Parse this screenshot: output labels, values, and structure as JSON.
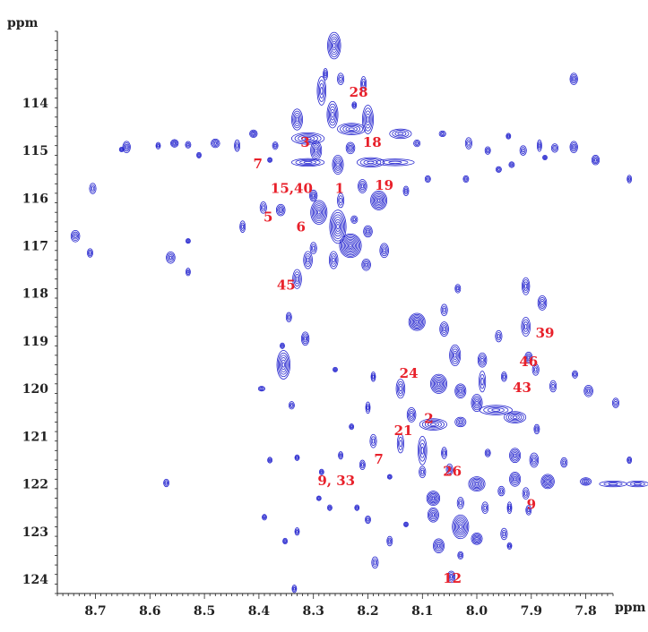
{
  "chart_data": {
    "type": "scatter",
    "subtype": "2D NMR contour spectrum",
    "x_unit": "ppm",
    "y_unit": "ppm",
    "x_axis_reversed": true,
    "xlim": [
      8.77,
      7.75
    ],
    "ylim": [
      112.5,
      124.3
    ],
    "x_ticks": [
      "8.7",
      "8.6",
      "8.5",
      "8.4",
      "8.3",
      "8.2",
      "8.1",
      "8.0",
      "7.9",
      "7.8"
    ],
    "y_ticks": [
      "114",
      "115",
      "116",
      "117",
      "118",
      "119",
      "120",
      "121",
      "122",
      "123",
      "124"
    ],
    "contour_color": "#1a1acc",
    "label_color": "#e8202a",
    "grid": false,
    "labels": [
      {
        "text": "28",
        "x": 8.217,
        "y": 113.8
      },
      {
        "text": "3",
        "x": 8.315,
        "y": 114.85
      },
      {
        "text": "18",
        "x": 8.192,
        "y": 114.85
      },
      {
        "text": "7",
        "x": 8.402,
        "y": 115.3
      },
      {
        "text": "15,40",
        "x": 8.34,
        "y": 115.82
      },
      {
        "text": "1",
        "x": 8.252,
        "y": 115.82
      },
      {
        "text": "19",
        "x": 8.17,
        "y": 115.75
      },
      {
        "text": "5",
        "x": 8.383,
        "y": 116.42
      },
      {
        "text": "6",
        "x": 8.323,
        "y": 116.62
      },
      {
        "text": "45",
        "x": 8.35,
        "y": 117.85
      },
      {
        "text": "39",
        "x": 7.875,
        "y": 118.85
      },
      {
        "text": "46",
        "x": 7.905,
        "y": 119.45
      },
      {
        "text": "24",
        "x": 8.125,
        "y": 119.7
      },
      {
        "text": "43",
        "x": 7.917,
        "y": 120.0
      },
      {
        "text": "2",
        "x": 8.088,
        "y": 120.65
      },
      {
        "text": "21",
        "x": 8.135,
        "y": 120.9
      },
      {
        "text": "7",
        "x": 8.18,
        "y": 121.5
      },
      {
        "text": "26",
        "x": 8.045,
        "y": 121.75
      },
      {
        "text": "9, 33",
        "x": 8.258,
        "y": 121.95
      },
      {
        "text": "9",
        "x": 7.9,
        "y": 122.45
      },
      {
        "text": "12",
        "x": 8.045,
        "y": 124.0
      }
    ],
    "peaks": [
      [
        8.262,
        112.8,
        0.012,
        0.28
      ],
      [
        8.278,
        113.4,
        0.004,
        0.12
      ],
      [
        8.25,
        113.5,
        0.006,
        0.12
      ],
      [
        8.208,
        113.6,
        0.005,
        0.15
      ],
      [
        8.285,
        113.75,
        0.008,
        0.3
      ],
      [
        7.822,
        113.5,
        0.007,
        0.12
      ],
      [
        8.225,
        114.05,
        0.004,
        0.07
      ],
      [
        8.265,
        114.25,
        0.01,
        0.28
      ],
      [
        8.23,
        114.55,
        0.026,
        0.12
      ],
      [
        8.2,
        114.35,
        0.01,
        0.3
      ],
      [
        8.232,
        114.95,
        0.008,
        0.12
      ],
      [
        8.14,
        114.65,
        0.02,
        0.1
      ],
      [
        8.31,
        114.75,
        0.03,
        0.12
      ],
      [
        8.33,
        114.35,
        0.01,
        0.22
      ],
      [
        8.295,
        115.0,
        0.01,
        0.2
      ],
      [
        8.643,
        114.93,
        0.007,
        0.12
      ],
      [
        8.555,
        114.85,
        0.007,
        0.08
      ],
      [
        8.53,
        114.88,
        0.005,
        0.07
      ],
      [
        8.48,
        114.85,
        0.008,
        0.09
      ],
      [
        8.44,
        114.9,
        0.005,
        0.12
      ],
      [
        8.41,
        114.65,
        0.007,
        0.08
      ],
      [
        8.37,
        114.9,
        0.005,
        0.08
      ],
      [
        8.585,
        114.9,
        0.004,
        0.07
      ],
      [
        8.51,
        115.1,
        0.003,
        0.06
      ],
      [
        8.38,
        115.2,
        0.004,
        0.05
      ],
      [
        8.31,
        115.25,
        0.03,
        0.08
      ],
      [
        8.255,
        115.3,
        0.01,
        0.2
      ],
      [
        8.195,
        115.25,
        0.025,
        0.1
      ],
      [
        8.15,
        115.25,
        0.035,
        0.07
      ],
      [
        8.11,
        114.85,
        0.006,
        0.07
      ],
      [
        8.063,
        114.65,
        0.006,
        0.06
      ],
      [
        8.015,
        114.85,
        0.006,
        0.12
      ],
      [
        7.98,
        115.0,
        0.005,
        0.08
      ],
      [
        7.942,
        114.7,
        0.004,
        0.06
      ],
      [
        7.915,
        115.0,
        0.006,
        0.1
      ],
      [
        7.885,
        114.9,
        0.004,
        0.12
      ],
      [
        7.822,
        114.93,
        0.007,
        0.12
      ],
      [
        7.857,
        114.95,
        0.006,
        0.09
      ],
      [
        7.782,
        115.2,
        0.007,
        0.1
      ],
      [
        7.72,
        115.6,
        0.004,
        0.08
      ],
      [
        7.936,
        115.3,
        0.005,
        0.06
      ],
      [
        7.875,
        115.15,
        0.003,
        0.05
      ],
      [
        7.96,
        115.4,
        0.005,
        0.06
      ],
      [
        8.02,
        115.6,
        0.005,
        0.07
      ],
      [
        8.09,
        115.6,
        0.005,
        0.07
      ],
      [
        8.705,
        115.8,
        0.006,
        0.11
      ],
      [
        8.652,
        114.98,
        0.004,
        0.05
      ],
      [
        8.3,
        115.95,
        0.007,
        0.12
      ],
      [
        8.21,
        115.75,
        0.008,
        0.14
      ],
      [
        8.13,
        115.85,
        0.005,
        0.1
      ],
      [
        8.25,
        116.05,
        0.006,
        0.15
      ],
      [
        8.29,
        116.3,
        0.015,
        0.25
      ],
      [
        8.36,
        116.25,
        0.008,
        0.12
      ],
      [
        8.392,
        116.2,
        0.006,
        0.12
      ],
      [
        8.43,
        116.6,
        0.005,
        0.12
      ],
      [
        8.18,
        116.05,
        0.015,
        0.2
      ],
      [
        8.225,
        116.45,
        0.006,
        0.08
      ],
      [
        8.255,
        116.6,
        0.015,
        0.35
      ],
      [
        8.232,
        117.0,
        0.02,
        0.25
      ],
      [
        8.2,
        116.7,
        0.008,
        0.12
      ],
      [
        8.17,
        117.1,
        0.008,
        0.15
      ],
      [
        8.3,
        117.05,
        0.006,
        0.12
      ],
      [
        8.263,
        117.3,
        0.008,
        0.18
      ],
      [
        8.31,
        117.3,
        0.008,
        0.18
      ],
      [
        8.33,
        117.7,
        0.008,
        0.2
      ],
      [
        8.203,
        117.4,
        0.008,
        0.12
      ],
      [
        8.737,
        116.8,
        0.008,
        0.12
      ],
      [
        8.71,
        117.15,
        0.005,
        0.09
      ],
      [
        8.562,
        117.25,
        0.008,
        0.12
      ],
      [
        8.53,
        116.9,
        0.003,
        0.05
      ],
      [
        8.53,
        117.55,
        0.003,
        0.08
      ],
      [
        8.035,
        117.9,
        0.005,
        0.09
      ],
      [
        7.91,
        117.85,
        0.007,
        0.18
      ],
      [
        7.88,
        118.2,
        0.008,
        0.15
      ],
      [
        8.06,
        118.35,
        0.006,
        0.12
      ],
      [
        8.11,
        118.6,
        0.015,
        0.18
      ],
      [
        8.06,
        118.75,
        0.008,
        0.15
      ],
      [
        7.96,
        118.9,
        0.006,
        0.12
      ],
      [
        7.91,
        118.7,
        0.008,
        0.2
      ],
      [
        8.345,
        118.5,
        0.005,
        0.1
      ],
      [
        8.315,
        118.95,
        0.007,
        0.14
      ],
      [
        8.357,
        119.1,
        0.004,
        0.06
      ],
      [
        8.355,
        119.5,
        0.012,
        0.3
      ],
      [
        8.04,
        119.3,
        0.01,
        0.22
      ],
      [
        7.99,
        119.4,
        0.008,
        0.15
      ],
      [
        7.905,
        119.35,
        0.007,
        0.12
      ],
      [
        8.07,
        119.9,
        0.015,
        0.2
      ],
      [
        8.03,
        120.05,
        0.01,
        0.15
      ],
      [
        7.99,
        119.85,
        0.006,
        0.22
      ],
      [
        7.95,
        119.75,
        0.005,
        0.1
      ],
      [
        7.892,
        119.6,
        0.006,
        0.12
      ],
      [
        7.86,
        119.95,
        0.006,
        0.12
      ],
      [
        7.82,
        119.7,
        0.005,
        0.08
      ],
      [
        7.795,
        120.05,
        0.008,
        0.12
      ],
      [
        7.745,
        120.3,
        0.006,
        0.1
      ],
      [
        8.19,
        119.75,
        0.004,
        0.1
      ],
      [
        8.26,
        119.6,
        0.003,
        0.05
      ],
      [
        8.395,
        120.0,
        0.006,
        0.05
      ],
      [
        8.34,
        120.35,
        0.005,
        0.08
      ],
      [
        8.14,
        120.0,
        0.008,
        0.2
      ],
      [
        8.12,
        120.55,
        0.008,
        0.15
      ],
      [
        8.08,
        120.75,
        0.025,
        0.12
      ],
      [
        8.03,
        120.7,
        0.01,
        0.1
      ],
      [
        8.0,
        120.3,
        0.01,
        0.18
      ],
      [
        7.965,
        120.45,
        0.03,
        0.1
      ],
      [
        7.93,
        120.6,
        0.02,
        0.12
      ],
      [
        7.89,
        120.85,
        0.005,
        0.1
      ],
      [
        7.67,
        120.9,
        0.007,
        0.18
      ],
      [
        7.72,
        121.5,
        0.004,
        0.07
      ],
      [
        8.2,
        120.4,
        0.004,
        0.12
      ],
      [
        8.23,
        120.8,
        0.003,
        0.06
      ],
      [
        8.19,
        121.1,
        0.006,
        0.14
      ],
      [
        8.14,
        121.15,
        0.006,
        0.2
      ],
      [
        8.1,
        121.3,
        0.008,
        0.3
      ],
      [
        8.06,
        121.35,
        0.005,
        0.12
      ],
      [
        7.98,
        121.35,
        0.005,
        0.08
      ],
      [
        7.93,
        121.4,
        0.01,
        0.15
      ],
      [
        7.895,
        121.5,
        0.008,
        0.15
      ],
      [
        7.93,
        121.9,
        0.01,
        0.15
      ],
      [
        7.87,
        121.95,
        0.012,
        0.15
      ],
      [
        7.84,
        121.55,
        0.006,
        0.1
      ],
      [
        7.8,
        121.95,
        0.01,
        0.08
      ],
      [
        7.75,
        122.0,
        0.025,
        0.06
      ],
      [
        7.705,
        122.0,
        0.02,
        0.06
      ],
      [
        8.21,
        121.6,
        0.005,
        0.1
      ],
      [
        8.25,
        121.4,
        0.004,
        0.08
      ],
      [
        8.285,
        121.75,
        0.004,
        0.06
      ],
      [
        8.33,
        121.45,
        0.004,
        0.06
      ],
      [
        8.38,
        121.5,
        0.004,
        0.06
      ],
      [
        8.1,
        121.75,
        0.006,
        0.12
      ],
      [
        8.05,
        121.7,
        0.006,
        0.12
      ],
      [
        8.0,
        122.0,
        0.015,
        0.15
      ],
      [
        7.955,
        122.15,
        0.006,
        0.1
      ],
      [
        7.91,
        122.2,
        0.006,
        0.12
      ],
      [
        8.08,
        122.3,
        0.012,
        0.15
      ],
      [
        8.03,
        122.4,
        0.006,
        0.12
      ],
      [
        7.985,
        122.5,
        0.006,
        0.12
      ],
      [
        7.94,
        122.5,
        0.004,
        0.12
      ],
      [
        7.905,
        122.55,
        0.005,
        0.1
      ],
      [
        8.08,
        122.65,
        0.01,
        0.15
      ],
      [
        8.03,
        122.9,
        0.015,
        0.25
      ],
      [
        8.0,
        123.15,
        0.01,
        0.12
      ],
      [
        7.95,
        123.05,
        0.006,
        0.12
      ],
      [
        8.07,
        123.3,
        0.01,
        0.15
      ],
      [
        8.03,
        123.5,
        0.005,
        0.08
      ],
      [
        8.13,
        122.85,
        0.003,
        0.05
      ],
      [
        8.16,
        123.2,
        0.005,
        0.1
      ],
      [
        8.187,
        123.65,
        0.006,
        0.12
      ],
      [
        8.047,
        123.95,
        0.007,
        0.12
      ],
      [
        8.27,
        122.5,
        0.003,
        0.06
      ],
      [
        8.2,
        122.75,
        0.005,
        0.08
      ],
      [
        8.57,
        121.98,
        0.005,
        0.08
      ],
      [
        8.335,
        124.2,
        0.003,
        0.08
      ],
      [
        8.352,
        123.2,
        0.002,
        0.06
      ],
      [
        8.29,
        122.3,
        0.003,
        0.05
      ],
      [
        8.39,
        122.7,
        0.003,
        0.06
      ],
      [
        8.33,
        123.0,
        0.003,
        0.08
      ],
      [
        8.16,
        121.85,
        0.003,
        0.05
      ],
      [
        8.22,
        122.5,
        0.004,
        0.06
      ],
      [
        7.94,
        123.3,
        0.004,
        0.07
      ]
    ]
  }
}
